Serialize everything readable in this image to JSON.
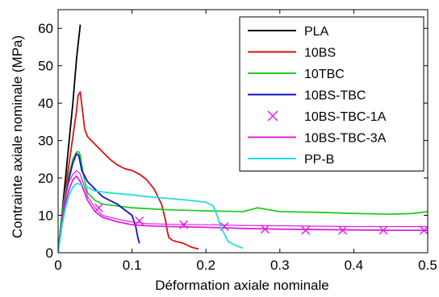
{
  "chart_data": {
    "type": "line",
    "xlabel": "Déformation axiale nominale",
    "ylabel": "Contrainte axiale nominale (MPa)",
    "xlim": [
      0,
      0.5
    ],
    "ylim": [
      0,
      65
    ],
    "xticks": [
      0,
      0.1,
      0.2,
      0.3,
      0.4,
      0.5
    ],
    "xtick_labels": [
      "0",
      "0.1",
      "0.2",
      "0.3",
      "0.4",
      "0.5"
    ],
    "yticks": [
      0,
      10,
      20,
      30,
      40,
      50,
      60
    ],
    "ytick_labels": [
      "0",
      "10",
      "20",
      "30",
      "40",
      "50",
      "60"
    ],
    "grid": false,
    "legend": {
      "position": "top-right"
    },
    "series": [
      {
        "name": "PLA",
        "color": "#000000",
        "marker": "none",
        "x": [
          0,
          0.005,
          0.01,
          0.015,
          0.02,
          0.025,
          0.03
        ],
        "y": [
          0,
          10,
          20,
          30,
          40,
          52,
          61
        ]
      },
      {
        "name": "10BS",
        "color": "#dd1111",
        "marker": "none",
        "x": [
          0,
          0.005,
          0.01,
          0.015,
          0.02,
          0.025,
          0.027,
          0.03,
          0.033,
          0.036,
          0.04,
          0.05,
          0.06,
          0.07,
          0.08,
          0.09,
          0.1,
          0.11,
          0.12,
          0.13,
          0.14,
          0.145,
          0.148,
          0.15,
          0.155,
          0.16,
          0.17,
          0.18,
          0.19
        ],
        "y": [
          0,
          10,
          17,
          24,
          31,
          38,
          42,
          43,
          38,
          33,
          31,
          29,
          27,
          25,
          23.5,
          22.5,
          22,
          21,
          19.5,
          17,
          13,
          9,
          5.5,
          4,
          3.3,
          3,
          2.5,
          1.5,
          1
        ]
      },
      {
        "name": "10TBC",
        "color": "#22cc22",
        "marker": "none",
        "x": [
          0,
          0.005,
          0.01,
          0.015,
          0.02,
          0.025,
          0.028,
          0.03,
          0.035,
          0.04,
          0.05,
          0.06,
          0.08,
          0.1,
          0.12,
          0.15,
          0.2,
          0.25,
          0.27,
          0.3,
          0.35,
          0.4,
          0.45,
          0.48,
          0.5
        ],
        "y": [
          0,
          10,
          16,
          21,
          25,
          27,
          27,
          26,
          20,
          16,
          14,
          13,
          12.5,
          12,
          11.8,
          11.5,
          11.2,
          11,
          12,
          11,
          10.8,
          10.5,
          10.3,
          10.5,
          11
        ]
      },
      {
        "name": "10BS-TBC",
        "color": "#1111cc",
        "marker": "none",
        "x": [
          0,
          0.005,
          0.01,
          0.015,
          0.02,
          0.025,
          0.028,
          0.032,
          0.04,
          0.05,
          0.06,
          0.07,
          0.08,
          0.09,
          0.1,
          0.105,
          0.108,
          0.11
        ],
        "y": [
          0,
          8,
          15,
          20,
          24,
          26.5,
          26,
          22,
          19,
          17,
          15,
          14,
          13,
          11.5,
          10,
          7,
          4,
          2.5
        ]
      },
      {
        "name": "10BS-TBC-1A",
        "color": "#dd22dd",
        "marker": "x",
        "x": [
          0,
          0.005,
          0.01,
          0.015,
          0.02,
          0.025,
          0.03,
          0.035,
          0.04,
          0.05,
          0.06,
          0.08,
          0.1,
          0.12,
          0.15,
          0.2,
          0.25,
          0.3,
          0.35,
          0.4,
          0.45,
          0.5
        ],
        "y": [
          0,
          8,
          15,
          19,
          21,
          22,
          21,
          18,
          15,
          12,
          10,
          9,
          8.2,
          7.8,
          7.6,
          7.5,
          7.3,
          7.2,
          7.1,
          7,
          7,
          7
        ],
        "marker_x": [
          0.055,
          0.11,
          0.17,
          0.225,
          0.28,
          0.335,
          0.385,
          0.44,
          0.495
        ],
        "marker_y": [
          12,
          8.5,
          7.5,
          7,
          6.3,
          6,
          6,
          6,
          6
        ]
      },
      {
        "name": "10BS-TBC-3A",
        "color": "#dd22dd",
        "marker": "none",
        "x": [
          0,
          0.005,
          0.01,
          0.015,
          0.02,
          0.025,
          0.03,
          0.035,
          0.04,
          0.05,
          0.06,
          0.08,
          0.1,
          0.12,
          0.15,
          0.2,
          0.25,
          0.3,
          0.35,
          0.4,
          0.45,
          0.5
        ],
        "y": [
          0,
          7,
          13,
          17,
          19.5,
          20.5,
          19,
          16.5,
          14,
          11,
          9.5,
          8.3,
          7.5,
          7.2,
          7,
          6.8,
          6.5,
          6.3,
          6.2,
          6.1,
          6,
          6
        ]
      },
      {
        "name": "PP-B",
        "color": "#22dddd",
        "marker": "none",
        "x": [
          0,
          0.005,
          0.01,
          0.015,
          0.02,
          0.025,
          0.03,
          0.04,
          0.05,
          0.07,
          0.1,
          0.12,
          0.15,
          0.18,
          0.2,
          0.21,
          0.215,
          0.22,
          0.225,
          0.23,
          0.24,
          0.25
        ],
        "y": [
          0,
          7,
          12,
          15.5,
          17.5,
          18.5,
          18.3,
          17.5,
          16.5,
          16,
          15.5,
          15,
          14.5,
          14,
          13.5,
          12.5,
          10,
          7,
          5,
          3,
          2,
          1.2
        ]
      }
    ]
  }
}
